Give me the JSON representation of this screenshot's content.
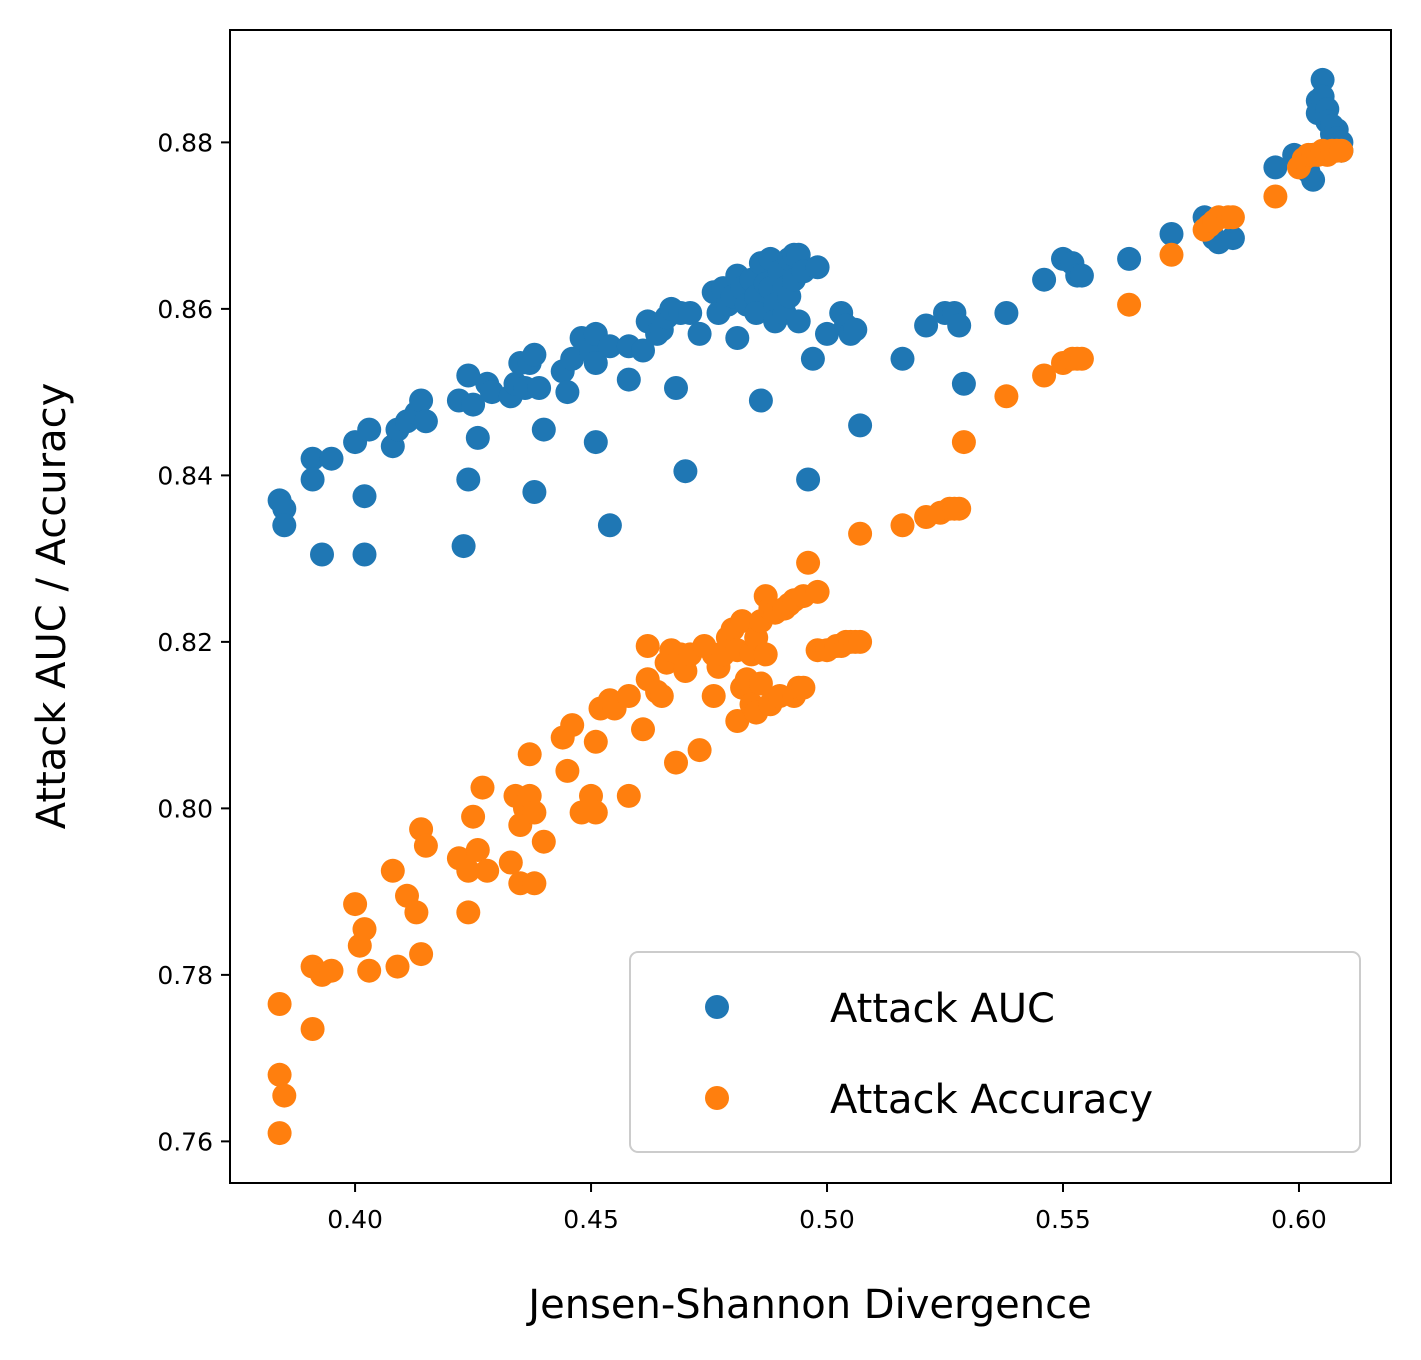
{
  "chart_data": {
    "type": "scatter",
    "title": "",
    "xlabel": "Jensen-Shannon Divergence",
    "ylabel": "Attack AUC / Accuracy",
    "xlim": [
      0.3735,
      0.6195
    ],
    "ylim": [
      0.755,
      0.8935
    ],
    "xticks": [
      0.4,
      0.45,
      0.5,
      0.55,
      0.6
    ],
    "xtick_labels": [
      "0.40",
      "0.45",
      "0.50",
      "0.55",
      "0.60"
    ],
    "yticks": [
      0.76,
      0.78,
      0.8,
      0.82,
      0.84,
      0.86,
      0.88
    ],
    "ytick_labels": [
      "0.76",
      "0.78",
      "0.80",
      "0.82",
      "0.84",
      "0.86",
      "0.88"
    ],
    "grid": false,
    "legend_position": "lower-right",
    "series": [
      {
        "name": "Attack AUC",
        "color": "#1f77b4",
        "points": [
          [
            0.384,
            0.837
          ],
          [
            0.385,
            0.836
          ],
          [
            0.385,
            0.834
          ],
          [
            0.391,
            0.842
          ],
          [
            0.391,
            0.8395
          ],
          [
            0.393,
            0.8305
          ],
          [
            0.395,
            0.842
          ],
          [
            0.4,
            0.844
          ],
          [
            0.402,
            0.8375
          ],
          [
            0.402,
            0.8305
          ],
          [
            0.403,
            0.8455
          ],
          [
            0.408,
            0.8435
          ],
          [
            0.409,
            0.8455
          ],
          [
            0.411,
            0.8465
          ],
          [
            0.413,
            0.8475
          ],
          [
            0.414,
            0.849
          ],
          [
            0.415,
            0.8465
          ],
          [
            0.422,
            0.849
          ],
          [
            0.423,
            0.8315
          ],
          [
            0.424,
            0.852
          ],
          [
            0.424,
            0.8395
          ],
          [
            0.425,
            0.8485
          ],
          [
            0.426,
            0.8445
          ],
          [
            0.428,
            0.851
          ],
          [
            0.429,
            0.85
          ],
          [
            0.433,
            0.8495
          ],
          [
            0.434,
            0.851
          ],
          [
            0.435,
            0.8535
          ],
          [
            0.436,
            0.8505
          ],
          [
            0.437,
            0.8535
          ],
          [
            0.438,
            0.8545
          ],
          [
            0.438,
            0.838
          ],
          [
            0.439,
            0.8505
          ],
          [
            0.44,
            0.8455
          ],
          [
            0.444,
            0.8525
          ],
          [
            0.445,
            0.85
          ],
          [
            0.446,
            0.854
          ],
          [
            0.448,
            0.8565
          ],
          [
            0.45,
            0.855
          ],
          [
            0.451,
            0.857
          ],
          [
            0.451,
            0.8535
          ],
          [
            0.451,
            0.844
          ],
          [
            0.454,
            0.8555
          ],
          [
            0.454,
            0.834
          ],
          [
            0.458,
            0.8555
          ],
          [
            0.458,
            0.8515
          ],
          [
            0.461,
            0.855
          ],
          [
            0.462,
            0.8585
          ],
          [
            0.464,
            0.857
          ],
          [
            0.465,
            0.8575
          ],
          [
            0.466,
            0.859
          ],
          [
            0.467,
            0.86
          ],
          [
            0.468,
            0.8505
          ],
          [
            0.469,
            0.8595
          ],
          [
            0.47,
            0.8405
          ],
          [
            0.471,
            0.8595
          ],
          [
            0.473,
            0.857
          ],
          [
            0.476,
            0.862
          ],
          [
            0.477,
            0.8595
          ],
          [
            0.478,
            0.8625
          ],
          [
            0.479,
            0.8605
          ],
          [
            0.48,
            0.8615
          ],
          [
            0.481,
            0.864
          ],
          [
            0.481,
            0.8565
          ],
          [
            0.482,
            0.8625
          ],
          [
            0.483,
            0.8605
          ],
          [
            0.484,
            0.8635
          ],
          [
            0.485,
            0.8615
          ],
          [
            0.485,
            0.8595
          ],
          [
            0.486,
            0.8655
          ],
          [
            0.486,
            0.849
          ],
          [
            0.487,
            0.863
          ],
          [
            0.488,
            0.866
          ],
          [
            0.488,
            0.8625
          ],
          [
            0.489,
            0.8605
          ],
          [
            0.489,
            0.8585
          ],
          [
            0.49,
            0.8645
          ],
          [
            0.491,
            0.8625
          ],
          [
            0.491,
            0.8595
          ],
          [
            0.492,
            0.866
          ],
          [
            0.492,
            0.8615
          ],
          [
            0.493,
            0.8665
          ],
          [
            0.493,
            0.8635
          ],
          [
            0.494,
            0.8665
          ],
          [
            0.494,
            0.8585
          ],
          [
            0.495,
            0.8645
          ],
          [
            0.496,
            0.8395
          ],
          [
            0.497,
            0.854
          ],
          [
            0.498,
            0.865
          ],
          [
            0.5,
            0.857
          ],
          [
            0.503,
            0.8595
          ],
          [
            0.504,
            0.858
          ],
          [
            0.505,
            0.857
          ],
          [
            0.506,
            0.8575
          ],
          [
            0.507,
            0.846
          ],
          [
            0.516,
            0.854
          ],
          [
            0.521,
            0.858
          ],
          [
            0.525,
            0.8595
          ],
          [
            0.527,
            0.8595
          ],
          [
            0.528,
            0.858
          ],
          [
            0.529,
            0.851
          ],
          [
            0.538,
            0.8595
          ],
          [
            0.546,
            0.8635
          ],
          [
            0.55,
            0.866
          ],
          [
            0.552,
            0.8655
          ],
          [
            0.553,
            0.864
          ],
          [
            0.554,
            0.864
          ],
          [
            0.564,
            0.866
          ],
          [
            0.573,
            0.869
          ],
          [
            0.58,
            0.871
          ],
          [
            0.581,
            0.8695
          ],
          [
            0.582,
            0.8685
          ],
          [
            0.583,
            0.868
          ],
          [
            0.586,
            0.8685
          ],
          [
            0.595,
            0.877
          ],
          [
            0.599,
            0.8785
          ],
          [
            0.6,
            0.8775
          ],
          [
            0.602,
            0.8765
          ],
          [
            0.603,
            0.8755
          ],
          [
            0.603,
            0.8785
          ],
          [
            0.604,
            0.885
          ],
          [
            0.604,
            0.8835
          ],
          [
            0.605,
            0.8875
          ],
          [
            0.605,
            0.8855
          ],
          [
            0.606,
            0.884
          ],
          [
            0.606,
            0.8825
          ],
          [
            0.607,
            0.882
          ],
          [
            0.607,
            0.881
          ],
          [
            0.608,
            0.8815
          ],
          [
            0.608,
            0.8805
          ],
          [
            0.609,
            0.88
          ],
          [
            0.609,
            0.879
          ]
        ]
      },
      {
        "name": "Attack Accuracy",
        "color": "#ff7f0e",
        "points": [
          [
            0.384,
            0.7765
          ],
          [
            0.384,
            0.768
          ],
          [
            0.385,
            0.7655
          ],
          [
            0.384,
            0.761
          ],
          [
            0.391,
            0.781
          ],
          [
            0.391,
            0.7735
          ],
          [
            0.393,
            0.78
          ],
          [
            0.395,
            0.7805
          ],
          [
            0.4,
            0.7885
          ],
          [
            0.401,
            0.7835
          ],
          [
            0.402,
            0.7855
          ],
          [
            0.403,
            0.7805
          ],
          [
            0.408,
            0.7925
          ],
          [
            0.409,
            0.781
          ],
          [
            0.411,
            0.7895
          ],
          [
            0.413,
            0.7875
          ],
          [
            0.414,
            0.7825
          ],
          [
            0.414,
            0.7975
          ],
          [
            0.415,
            0.7955
          ],
          [
            0.422,
            0.794
          ],
          [
            0.424,
            0.7875
          ],
          [
            0.424,
            0.7925
          ],
          [
            0.425,
            0.799
          ],
          [
            0.426,
            0.795
          ],
          [
            0.427,
            0.8025
          ],
          [
            0.428,
            0.7925
          ],
          [
            0.433,
            0.7935
          ],
          [
            0.434,
            0.8015
          ],
          [
            0.435,
            0.798
          ],
          [
            0.435,
            0.791
          ],
          [
            0.436,
            0.8
          ],
          [
            0.437,
            0.8065
          ],
          [
            0.437,
            0.8015
          ],
          [
            0.438,
            0.7995
          ],
          [
            0.438,
            0.791
          ],
          [
            0.44,
            0.796
          ],
          [
            0.444,
            0.8085
          ],
          [
            0.445,
            0.8045
          ],
          [
            0.446,
            0.81
          ],
          [
            0.448,
            0.7995
          ],
          [
            0.45,
            0.8015
          ],
          [
            0.451,
            0.808
          ],
          [
            0.451,
            0.7995
          ],
          [
            0.452,
            0.812
          ],
          [
            0.454,
            0.813
          ],
          [
            0.455,
            0.812
          ],
          [
            0.458,
            0.8135
          ],
          [
            0.458,
            0.8015
          ],
          [
            0.461,
            0.8095
          ],
          [
            0.462,
            0.8155
          ],
          [
            0.462,
            0.8195
          ],
          [
            0.464,
            0.814
          ],
          [
            0.465,
            0.8135
          ],
          [
            0.466,
            0.8175
          ],
          [
            0.467,
            0.819
          ],
          [
            0.468,
            0.8055
          ],
          [
            0.469,
            0.8185
          ],
          [
            0.47,
            0.8165
          ],
          [
            0.471,
            0.8185
          ],
          [
            0.473,
            0.807
          ],
          [
            0.474,
            0.8195
          ],
          [
            0.476,
            0.8185
          ],
          [
            0.476,
            0.8135
          ],
          [
            0.477,
            0.817
          ],
          [
            0.478,
            0.8185
          ],
          [
            0.479,
            0.8205
          ],
          [
            0.48,
            0.8215
          ],
          [
            0.481,
            0.819
          ],
          [
            0.481,
            0.8105
          ],
          [
            0.482,
            0.8225
          ],
          [
            0.482,
            0.8145
          ],
          [
            0.483,
            0.8155
          ],
          [
            0.484,
            0.8185
          ],
          [
            0.484,
            0.8125
          ],
          [
            0.485,
            0.8205
          ],
          [
            0.485,
            0.8115
          ],
          [
            0.486,
            0.8225
          ],
          [
            0.486,
            0.815
          ],
          [
            0.487,
            0.8255
          ],
          [
            0.487,
            0.8185
          ],
          [
            0.488,
            0.824
          ],
          [
            0.488,
            0.8125
          ],
          [
            0.489,
            0.8235
          ],
          [
            0.49,
            0.8135
          ],
          [
            0.491,
            0.824
          ],
          [
            0.492,
            0.8245
          ],
          [
            0.493,
            0.8135
          ],
          [
            0.493,
            0.825
          ],
          [
            0.494,
            0.8145
          ],
          [
            0.495,
            0.8145
          ],
          [
            0.495,
            0.8255
          ],
          [
            0.496,
            0.8295
          ],
          [
            0.498,
            0.826
          ],
          [
            0.498,
            0.819
          ],
          [
            0.5,
            0.819
          ],
          [
            0.502,
            0.8195
          ],
          [
            0.503,
            0.8195
          ],
          [
            0.504,
            0.82
          ],
          [
            0.505,
            0.82
          ],
          [
            0.506,
            0.82
          ],
          [
            0.507,
            0.833
          ],
          [
            0.507,
            0.82
          ],
          [
            0.516,
            0.834
          ],
          [
            0.521,
            0.835
          ],
          [
            0.524,
            0.8355
          ],
          [
            0.526,
            0.836
          ],
          [
            0.527,
            0.836
          ],
          [
            0.528,
            0.836
          ],
          [
            0.529,
            0.844
          ],
          [
            0.538,
            0.8495
          ],
          [
            0.546,
            0.852
          ],
          [
            0.55,
            0.8535
          ],
          [
            0.552,
            0.854
          ],
          [
            0.553,
            0.854
          ],
          [
            0.554,
            0.854
          ],
          [
            0.564,
            0.8605
          ],
          [
            0.573,
            0.8665
          ],
          [
            0.58,
            0.8695
          ],
          [
            0.581,
            0.87
          ],
          [
            0.582,
            0.8705
          ],
          [
            0.583,
            0.871
          ],
          [
            0.585,
            0.871
          ],
          [
            0.586,
            0.871
          ],
          [
            0.595,
            0.8735
          ],
          [
            0.6,
            0.877
          ],
          [
            0.601,
            0.878
          ],
          [
            0.602,
            0.8785
          ],
          [
            0.603,
            0.8785
          ],
          [
            0.604,
            0.8785
          ],
          [
            0.605,
            0.879
          ],
          [
            0.606,
            0.8785
          ],
          [
            0.607,
            0.879
          ],
          [
            0.608,
            0.879
          ],
          [
            0.609,
            0.879
          ]
        ]
      }
    ]
  }
}
